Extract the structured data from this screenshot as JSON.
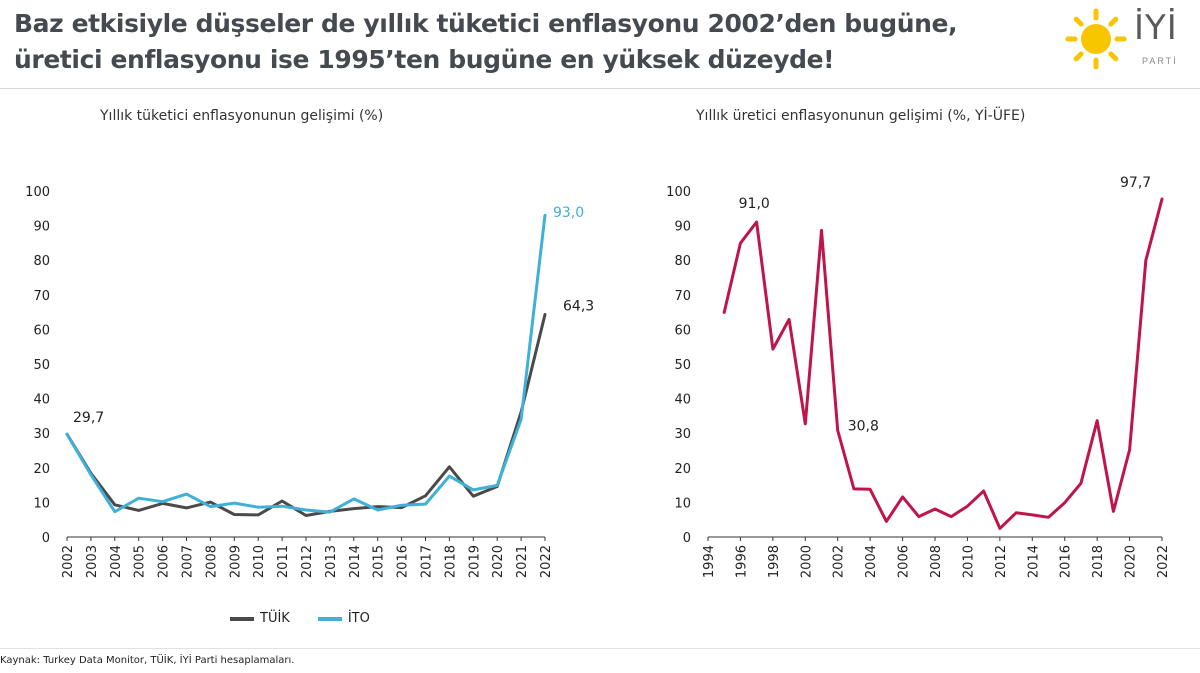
{
  "header": {
    "line1": "Baz etkisiyle düşseler de yıllık tüketici enflasyonu 2002’den bugüne,",
    "line2": "üretici enflasyonu ise 1995’ten bugüne en yüksek düzeyde!"
  },
  "logo": {
    "word": "İYİ",
    "sub": "PARTİ",
    "sun_color": "#F7C600",
    "icon": "sun-icon"
  },
  "source": "Kaynak: Turkey Data Monitor, TÜİK, İYİ Parti hesaplamaları.",
  "legend": [
    {
      "label": "TÜİK",
      "color": "#4a4a4a"
    },
    {
      "label": "İTO",
      "color": "#3fb0d8"
    }
  ],
  "chart_data": [
    {
      "type": "line",
      "title": "Yıllık tüketici enflasyonunun gelişimi (%)",
      "xlabel": "",
      "ylabel": "",
      "x": [
        2002,
        2003,
        2004,
        2005,
        2006,
        2007,
        2008,
        2009,
        2010,
        2011,
        2012,
        2013,
        2014,
        2015,
        2016,
        2017,
        2018,
        2019,
        2020,
        2021,
        2022
      ],
      "ylim": [
        0,
        100
      ],
      "yticks": [
        0,
        10,
        20,
        30,
        40,
        50,
        60,
        70,
        80,
        90,
        100
      ],
      "grid": false,
      "legend_position": "bottom",
      "series": [
        {
          "name": "TÜİK",
          "color": "#4a4a4a",
          "values": [
            29.7,
            18.4,
            9.3,
            7.7,
            9.7,
            8.4,
            10.1,
            6.5,
            6.4,
            10.4,
            6.2,
            7.4,
            8.2,
            8.8,
            8.5,
            11.9,
            20.3,
            11.8,
            14.6,
            36.1,
            64.3
          ]
        },
        {
          "name": "İTO",
          "color": "#3fb0d8",
          "values": [
            29.7,
            18.0,
            7.3,
            11.2,
            10.2,
            12.4,
            8.8,
            9.8,
            8.6,
            8.9,
            7.8,
            7.2,
            11.0,
            7.8,
            9.2,
            9.5,
            17.6,
            13.6,
            14.9,
            34.0,
            93.0
          ]
        }
      ],
      "annotations": [
        {
          "text": "29,7",
          "x": 2002,
          "y": 29.7,
          "color": "#222222"
        },
        {
          "text": "93,0",
          "x": 2022,
          "y": 93.0,
          "color": "#3fb0d8"
        },
        {
          "text": "64,3",
          "x": 2022,
          "y": 64.3,
          "color": "#222222"
        }
      ]
    },
    {
      "type": "line",
      "title": "Yıllık üretici enflasyonunun gelişimi (%, Yİ-ÜFE)",
      "xlabel": "",
      "ylabel": "",
      "xlim": [
        1994,
        2022
      ],
      "xticks": [
        1994,
        1996,
        1998,
        2000,
        2002,
        2004,
        2006,
        2008,
        2010,
        2012,
        2014,
        2016,
        2018,
        2020,
        2022
      ],
      "ylim": [
        0,
        100
      ],
      "yticks": [
        0,
        10,
        20,
        30,
        40,
        50,
        60,
        70,
        80,
        90,
        100
      ],
      "grid": false,
      "series": [
        {
          "name": "",
          "color": "#c0154a",
          "x": [
            1995,
            1996,
            1997,
            1998,
            1999,
            2000,
            2001,
            2002,
            2003,
            2004,
            2005,
            2006,
            2007,
            2008,
            2009,
            2010,
            2011,
            2012,
            2013,
            2014,
            2015,
            2016,
            2017,
            2018,
            2019,
            2020,
            2021,
            2022
          ],
          "values": [
            64.9,
            84.9,
            91.0,
            54.3,
            62.9,
            32.7,
            88.6,
            30.8,
            13.9,
            13.8,
            4.5,
            11.6,
            5.9,
            8.1,
            5.9,
            8.9,
            13.3,
            2.5,
            7.0,
            6.4,
            5.7,
            9.9,
            15.5,
            33.6,
            7.4,
            25.2,
            79.9,
            97.7
          ]
        }
      ],
      "annotations": [
        {
          "text": "91,0",
          "x": 1997,
          "y": 91.0,
          "color": "#222222"
        },
        {
          "text": "30,8",
          "x": 2002,
          "y": 30.8,
          "color": "#222222"
        },
        {
          "text": "97,7",
          "x": 2022,
          "y": 97.7,
          "color": "#222222"
        }
      ]
    }
  ]
}
